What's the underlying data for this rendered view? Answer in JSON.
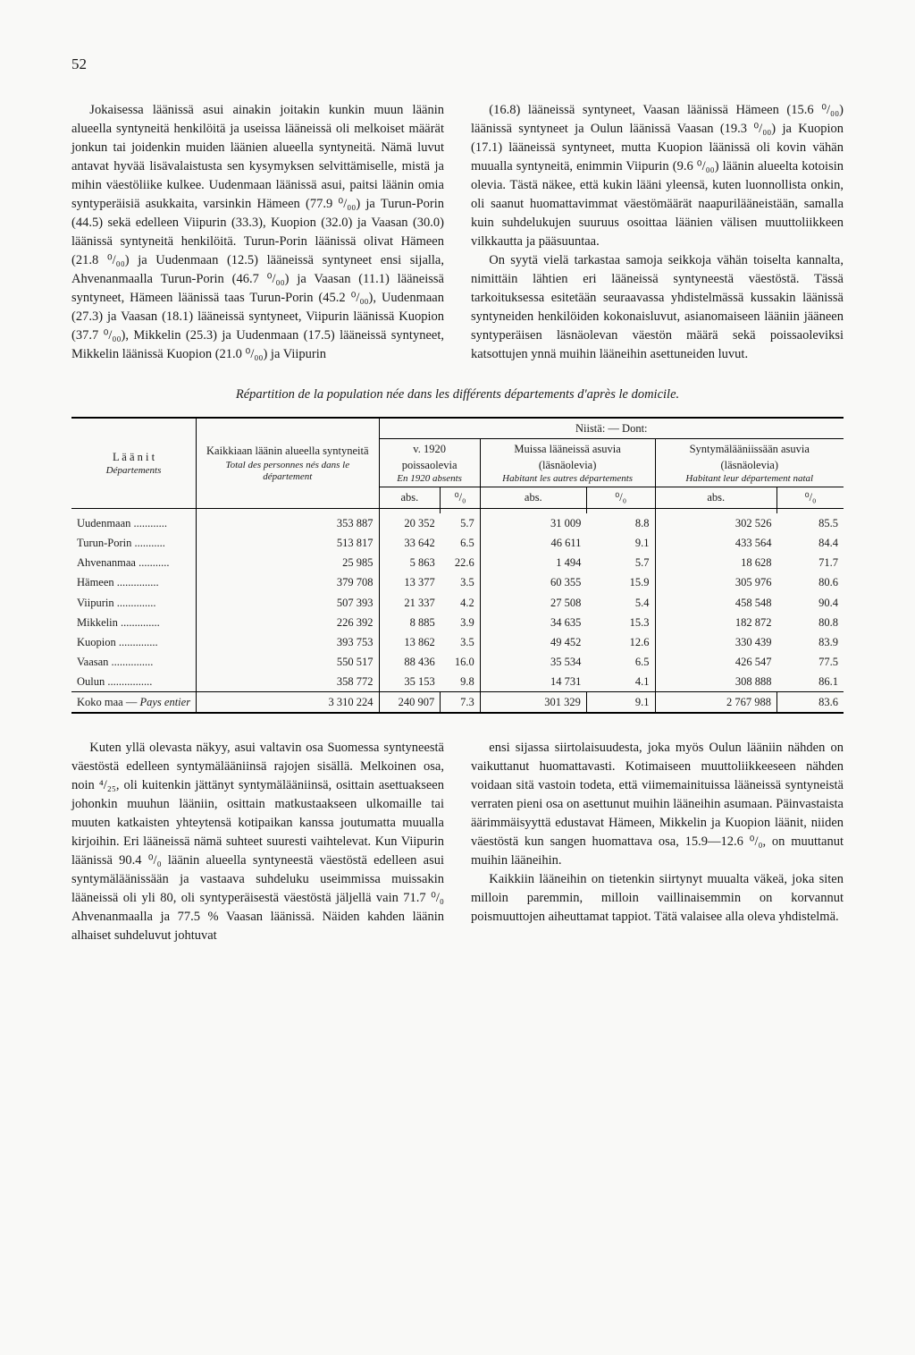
{
  "page_number": "52",
  "upper_left": "Jokaisessa läänissä asui ainakin joitakin kunkin muun läänin alueella syntyneitä henkilöitä ja useissa lääneissä oli melkoiset määrät jonkun tai joidenkin muiden läänien alueella syntyneitä. Nämä luvut antavat hyvää lisävalaistusta sen kysymyksen selvittämiselle, mistä ja mihin väestöliike kulkee. Uudenmaan läänissä asui, paitsi läänin omia syntyperäisiä asukkaita, varsinkin Hämeen (77.9 ⁰/₀₀) ja Turun-Porin (44.5) sekä edelleen Viipurin (33.3), Kuopion (32.0) ja Vaasan (30.0) läänissä syntyneitä henkilöitä. Turun-Porin läänissä olivat Hämeen (21.8 ⁰/₀₀) ja Uudenmaan (12.5) lääneissä syntyneet ensi sijalla, Ahvenanmaalla Turun-Porin (46.7 ⁰/₀₀) ja Vaasan (11.1) lääneissä syntyneet, Hämeen läänissä taas Turun-Porin (45.2 ⁰/₀₀), Uudenmaan (27.3) ja Vaasan (18.1) lääneissä syntyneet, Viipurin läänissä Kuopion (37.7 ⁰/₀₀), Mikkelin (25.3) ja Uudenmaan (17.5) lääneissä syntyneet, Mikkelin läänissä Kuopion (21.0 ⁰/₀₀) ja Viipurin",
  "upper_right": "(16.8) lääneissä syntyneet, Vaasan läänissä Hämeen (15.6 ⁰/₀₀) läänissä syntyneet ja Oulun läänissä Vaasan (19.3 ⁰/₀₀) ja Kuopion (17.1) lääneissä syntyneet, mutta Kuopion läänissä oli kovin vähän muualla syntyneitä, enimmin Viipurin (9.6 ⁰/₀₀) läänin alueelta kotoisin olevia. Tästä näkee, että kukin lääni yleensä, kuten luonnollista onkin, oli saanut huomattavimmat väestömäärät naapurilääneistään, samalla kuin suhdelukujen suuruus osoittaa läänien välisen muuttoliikkeen vilkkautta ja pääsuuntaa.",
  "upper_right_p2": "On syytä vielä tarkastaa samoja seikkoja vähän toiselta kannalta, nimittäin lähtien eri lääneissä syntyneestä väestöstä. Tässä tarkoituksessa esitetään seuraavassa yhdistelmässä kussakin läänissä syntyneiden henkilöiden kokonaisluvut, asianomaiseen lääniin jääneen syntyperäisen läsnäolevan väestön määrä sekä poissaoleviksi katsottujen ynnä muihin lääneihin asettuneiden luvut.",
  "table_title": "Répartition de la population née dans les différents départements d'après le domicile.",
  "header": {
    "laanit": "L ä ä n i t",
    "departements": "Départements",
    "kaikkiaan": "Kaikkiaan läänin alueella syntyneitä",
    "kaikkiaan_sub": "Total des personnes nés dans le département",
    "niista": "Niistä: — Dont:",
    "poissa": "v. 1920 poissaolevia",
    "poissa_sub": "En 1920 absents",
    "muissa": "Muissa lääneissä asuvia (läsnäolevia)",
    "muissa_sub": "Habitant les autres départements",
    "synty": "Syntymälääniissään asuvia (läsnäolevia)",
    "synty_sub": "Habitant leur département natal",
    "abs": "abs.",
    "pct": "⁰/₀"
  },
  "rows": [
    {
      "label": "Uudenmaan ............",
      "total": "353 887",
      "pa": "20 352",
      "pp": "5.7",
      "ma": "31 009",
      "mp": "8.8",
      "sa": "302 526",
      "sp": "85.5"
    },
    {
      "label": "Turun-Porin ...........",
      "total": "513 817",
      "pa": "33 642",
      "pp": "6.5",
      "ma": "46 611",
      "mp": "9.1",
      "sa": "433 564",
      "sp": "84.4"
    },
    {
      "label": "Ahvenanmaa ...........",
      "total": "25 985",
      "pa": "5 863",
      "pp": "22.6",
      "ma": "1 494",
      "mp": "5.7",
      "sa": "18 628",
      "sp": "71.7"
    },
    {
      "label": "Hämeen ...............",
      "total": "379 708",
      "pa": "13 377",
      "pp": "3.5",
      "ma": "60 355",
      "mp": "15.9",
      "sa": "305 976",
      "sp": "80.6"
    },
    {
      "label": "Viipurin ..............",
      "total": "507 393",
      "pa": "21 337",
      "pp": "4.2",
      "ma": "27 508",
      "mp": "5.4",
      "sa": "458 548",
      "sp": "90.4"
    },
    {
      "label": "Mikkelin ..............",
      "total": "226 392",
      "pa": "8 885",
      "pp": "3.9",
      "ma": "34 635",
      "mp": "15.3",
      "sa": "182 872",
      "sp": "80.8"
    },
    {
      "label": "Kuopion ..............",
      "total": "393 753",
      "pa": "13 862",
      "pp": "3.5",
      "ma": "49 452",
      "mp": "12.6",
      "sa": "330 439",
      "sp": "83.9"
    },
    {
      "label": "Vaasan ...............",
      "total": "550 517",
      "pa": "88 436",
      "pp": "16.0",
      "ma": "35 534",
      "mp": "6.5",
      "sa": "426 547",
      "sp": "77.5"
    },
    {
      "label": "Oulun ................",
      "total": "358 772",
      "pa": "35 153",
      "pp": "9.8",
      "ma": "14 731",
      "mp": "4.1",
      "sa": "308 888",
      "sp": "86.1"
    }
  ],
  "total_row": {
    "label": "Koko maa — Pays entier",
    "total": "3 310 224",
    "pa": "240 907",
    "pp": "7.3",
    "ma": "301 329",
    "mp": "9.1",
    "sa": "2 767 988",
    "sp": "83.6"
  },
  "lower_left": "Kuten yllä olevasta näkyy, asui valtavin osa Suomessa syntyneestä väestöstä edelleen syntymälääniinsä rajojen sisällä. Melkoinen osa, noin ⁴/₂₅, oli kuitenkin jättänyt syntymälääniinsä, osittain asettuakseen johonkin muuhun lääniin, osittain matkustaakseen ulkomaille tai muuten katkaisten yhteytensä kotipaikan kanssa joutumatta muualla kirjoihin. Eri lääneissä nämä suhteet suuresti vaihtelevat. Kun Viipurin läänissä 90.4 ⁰/₀ läänin alueella syntyneestä väestöstä edelleen asui syntymäläänissään ja vastaava suhdeluku useimmissa muissakin lääneissä oli yli 80, oli syntyperäisestä väestöstä jäljellä vain 71.7 ⁰/₀ Ahvenanmaalla ja 77.5 % Vaasan läänissä. Näiden kahden läänin alhaiset suhdeluvut johtuvat",
  "lower_right_p1": "ensi sijassa siirtolaisuudesta, joka myös Oulun lääniin nähden on vaikuttanut huomattavasti. Kotimaiseen muuttoliikkeeseen nähden voidaan sitä vastoin todeta, että viimemainituissa lääneissä syntyneistä verraten pieni osa on asettunut muihin lääneihin asumaan. Päinvastaista äärimmäisyyttä edustavat Hämeen, Mikkelin ja Kuopion läänit, niiden väestöstä kun sangen huomattava osa, 15.9—12.6 ⁰/₀, on muuttanut muihin lääneihin.",
  "lower_right_p2": "Kaikkiin lääneihin on tietenkin siirtynyt muualta väkeä, joka siten milloin paremmin, milloin vaillinaisemmin on korvannut poismuuttojen aiheuttamat tappiot. Tätä valaisee alla oleva yhdistelmä."
}
